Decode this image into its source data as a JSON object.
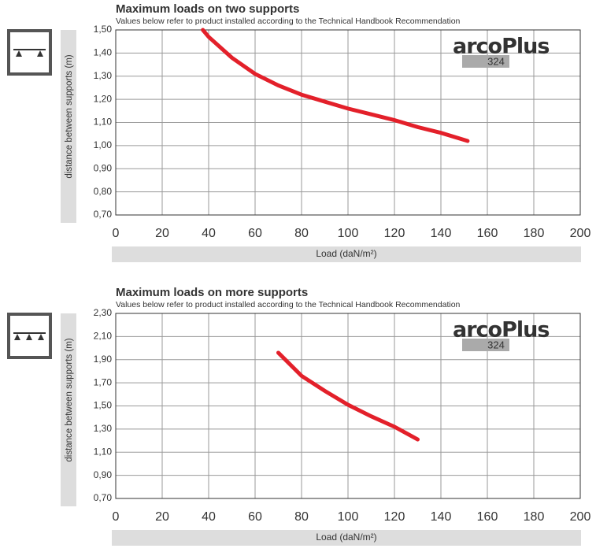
{
  "chart_data": [
    {
      "type": "line",
      "title": "Maximum loads on two supports",
      "subtitle": "Values below refer to product installed according to the Technical Handbook Recommendation",
      "x_label": "Load (daN/m²)",
      "y_label": "distance between supports (m)",
      "x": [
        37.5,
        40,
        50,
        60,
        70,
        80,
        90,
        100,
        110,
        120,
        130,
        140,
        151.5
      ],
      "series": [
        {
          "color": "#e3202a",
          "values": [
            1.5,
            1.47,
            1.38,
            1.31,
            1.26,
            1.22,
            1.19,
            1.16,
            1.135,
            1.11,
            1.08,
            1.055,
            1.02
          ]
        }
      ],
      "xlim": [
        0,
        200
      ],
      "xticks": [
        0,
        20,
        40,
        60,
        80,
        100,
        120,
        140,
        160,
        180,
        200
      ],
      "ylim": [
        0.7,
        1.5
      ],
      "yticks": [
        {
          "value": 0.7,
          "label": "0,70"
        },
        {
          "value": 0.8,
          "label": "0,80"
        },
        {
          "value": 0.9,
          "label": "0,90"
        },
        {
          "value": 1.0,
          "label": "1,00"
        },
        {
          "value": 1.1,
          "label": "1,10"
        },
        {
          "value": 1.2,
          "label": "1,20"
        },
        {
          "value": 1.3,
          "label": "1,30"
        },
        {
          "value": 1.4,
          "label": "1,40"
        },
        {
          "value": 1.5,
          "label": "1,50"
        }
      ],
      "grid": true,
      "logo": {
        "brand": "arcoPlus",
        "model": "324"
      }
    },
    {
      "type": "line",
      "title": "Maximum loads on more supports",
      "subtitle": "Values below refer to product installed according to the Technical Handbook Recommendation",
      "x_label": "Load (daN/m²)",
      "y_label": "distance between supports (m)",
      "x": [
        70,
        80,
        90,
        100,
        110,
        120,
        130
      ],
      "series": [
        {
          "color": "#e3202a",
          "values": [
            1.96,
            1.76,
            1.63,
            1.51,
            1.41,
            1.32,
            1.21
          ]
        }
      ],
      "xlim": [
        0,
        200
      ],
      "xticks": [
        0,
        20,
        40,
        60,
        80,
        100,
        120,
        140,
        160,
        180,
        200
      ],
      "ylim": [
        0.7,
        2.3
      ],
      "yticks": [
        {
          "value": 0.7,
          "label": "0,70"
        },
        {
          "value": 0.9,
          "label": "0,90"
        },
        {
          "value": 1.1,
          "label": "1,10"
        },
        {
          "value": 1.3,
          "label": "1,30"
        },
        {
          "value": 1.5,
          "label": "1,50"
        },
        {
          "value": 1.7,
          "label": "1,70"
        },
        {
          "value": 1.9,
          "label": "1,90"
        },
        {
          "value": 2.1,
          "label": "2,10"
        },
        {
          "value": 2.3,
          "label": "2,30"
        }
      ],
      "grid": true,
      "logo": {
        "brand": "arcoPlus",
        "model": "324"
      }
    }
  ]
}
